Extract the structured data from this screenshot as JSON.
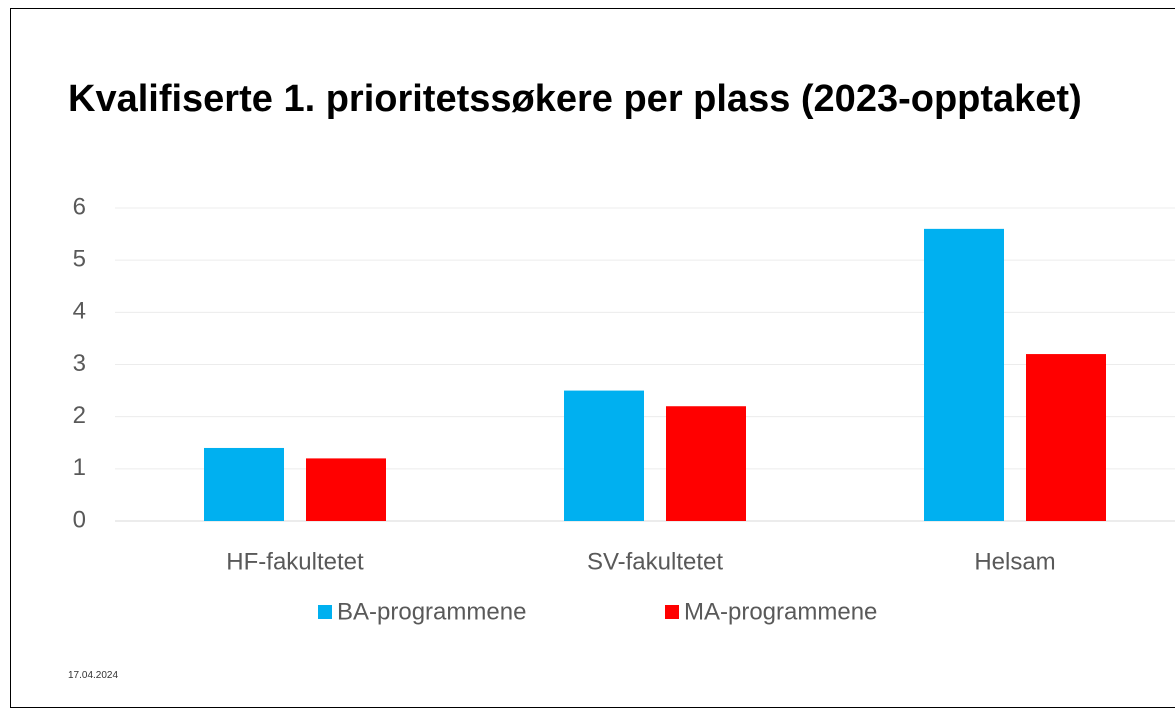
{
  "chart_data": {
    "type": "bar",
    "title": "Kvalifiserte 1. prioritetssøkere per plass (2023-opptaket)",
    "categories": [
      "HF-fakultetet",
      "SV-fakultetet",
      "Helsam"
    ],
    "series": [
      {
        "name": "BA-programmene",
        "color": "#00b0f0",
        "values": [
          1.4,
          2.5,
          5.6
        ]
      },
      {
        "name": "MA-programmene",
        "color": "#ff0000",
        "values": [
          1.2,
          2.2,
          3.2
        ]
      }
    ],
    "ylim": [
      0,
      6
    ],
    "yticks": [
      0,
      1,
      2,
      3,
      4,
      5,
      6
    ],
    "grid": true,
    "legend": "bottom"
  },
  "footer": {
    "date": "17.04.2024"
  }
}
